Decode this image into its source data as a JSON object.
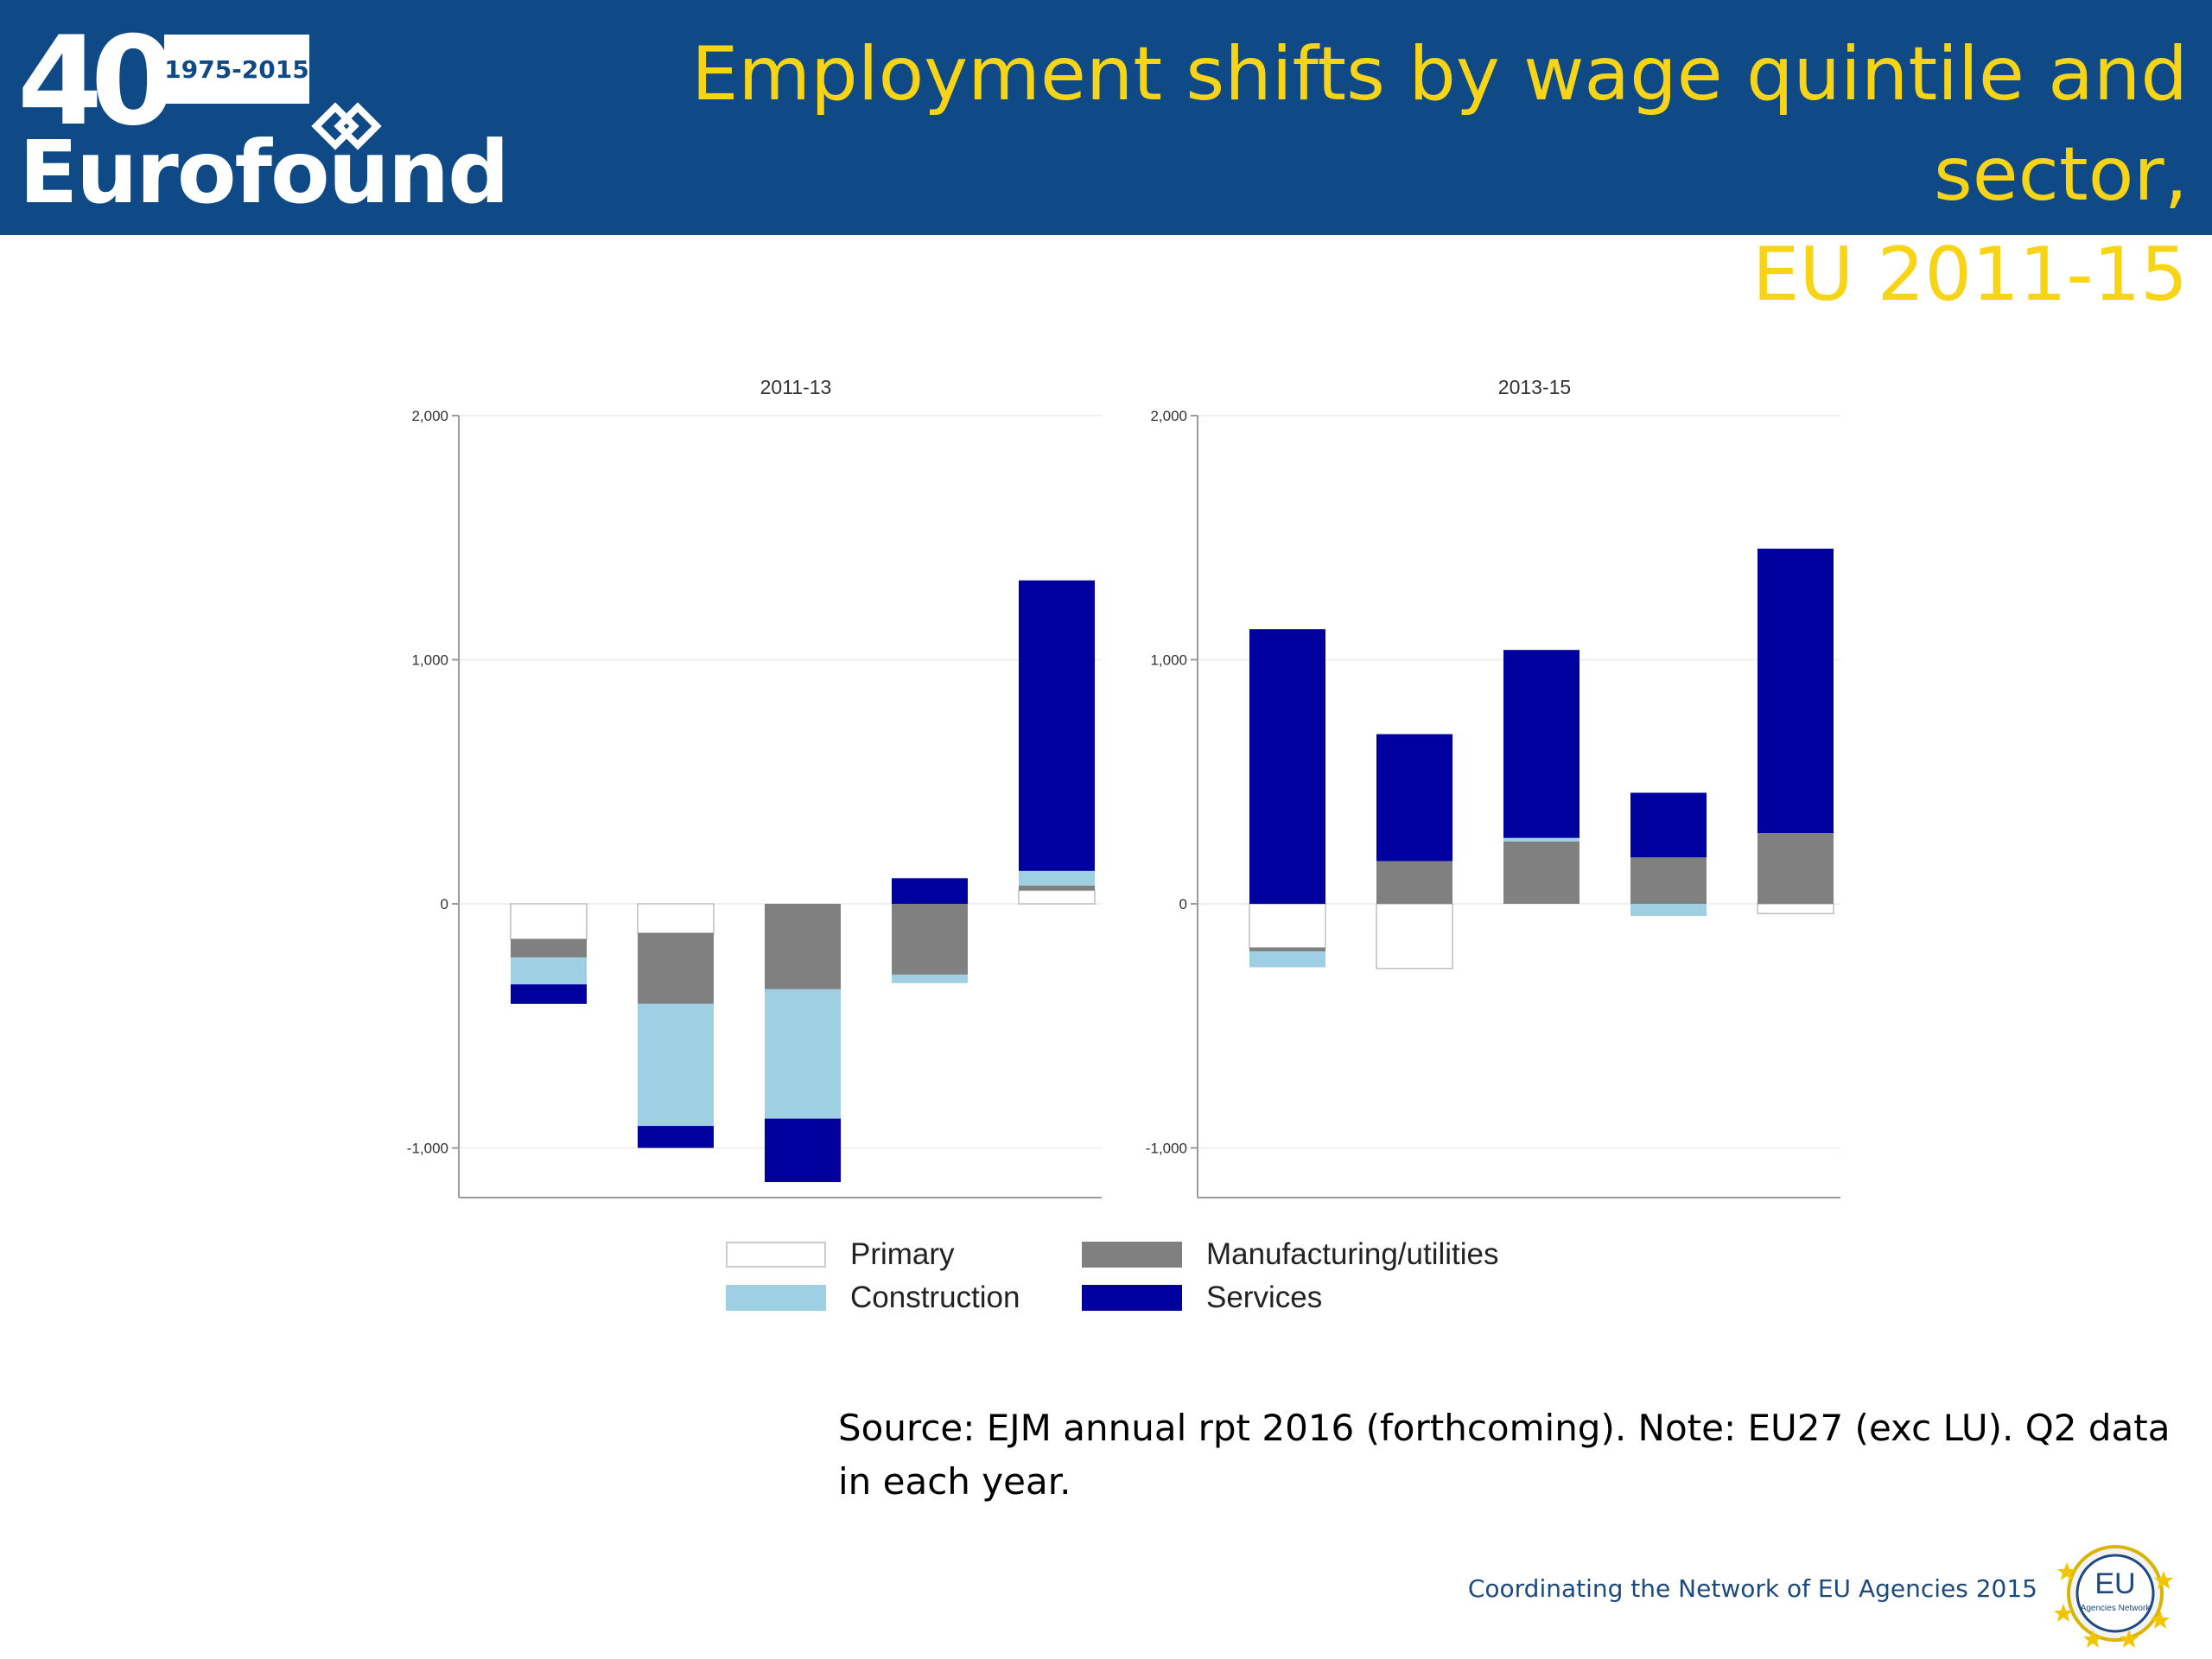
{
  "header": {
    "logo_number": "40",
    "logo_years": "1975-2015",
    "logo_name": "Eurofound",
    "title_line1": "Employment shifts by wage quintile and sector,",
    "title_line2": "EU 2011-15"
  },
  "colors": {
    "header_bg": "#0f4a87",
    "title": "#f7d416",
    "primary": "#ffffff",
    "construction": "#9ecfe3",
    "manufacturing": "#808080",
    "services": "#00009e"
  },
  "chart_data": {
    "type": "bar",
    "stacked": true,
    "ylim": [
      -1200,
      2000
    ],
    "yticks": [
      -1000,
      0,
      1000,
      2000
    ],
    "ytick_labels": [
      "-1,000",
      "0",
      "1,000",
      "2,000"
    ],
    "grid": true,
    "legend_position": "bottom",
    "sector_order": [
      "Primary",
      "Manufacturing/utilities",
      "Construction",
      "Services"
    ],
    "legend": [
      {
        "label": "Primary",
        "key": "primary"
      },
      {
        "label": "Manufacturing/utilities",
        "key": "manufacturing"
      },
      {
        "label": "Construction",
        "key": "construction"
      },
      {
        "label": "Services",
        "key": "services"
      }
    ],
    "panels": [
      {
        "title": "2011-13",
        "quintiles": [
          {
            "Primary": -145,
            "Manufacturing/utilities": -75,
            "Construction": -110,
            "Services": -80
          },
          {
            "Primary": -120,
            "Manufacturing/utilities": -290,
            "Construction": -500,
            "Services": -90
          },
          {
            "Primary": 0,
            "Manufacturing/utilities": -350,
            "Construction": -530,
            "Services": -260
          },
          {
            "Primary": 0,
            "Manufacturing/utilities": -290,
            "Construction": -35,
            "Services": 105
          },
          {
            "Primary": 55,
            "Manufacturing/utilities": 20,
            "Construction": 60,
            "Services": 1190
          }
        ]
      },
      {
        "title": "2013-15",
        "quintiles": [
          {
            "Primary": -180,
            "Manufacturing/utilities": -15,
            "Construction": -65,
            "Services": 1125
          },
          {
            "Primary": -265,
            "Manufacturing/utilities": 175,
            "Construction": 0,
            "Services": 520
          },
          {
            "Primary": 0,
            "Manufacturing/utilities": 255,
            "Construction": 15,
            "Services": 770
          },
          {
            "Primary": 0,
            "Manufacturing/utilities": 190,
            "Construction": -50,
            "Services": 265
          },
          {
            "Primary": -40,
            "Manufacturing/utilities": 290,
            "Construction": 0,
            "Services": 1165
          }
        ]
      }
    ]
  },
  "source_text": "Source: EJM annual rpt 2016 (forthcoming). Note: EU27 (exc LU). Q2 data in each year.",
  "footer_text": "Coordinating the Network of EU Agencies 2015",
  "eu_badge": {
    "label": "EU",
    "sublabel": "Agencies Network"
  }
}
